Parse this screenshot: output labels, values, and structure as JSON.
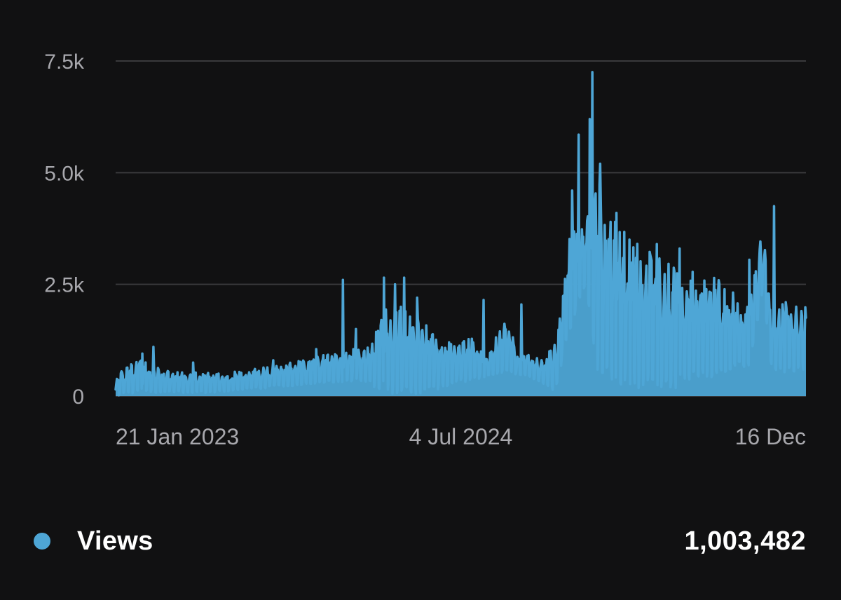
{
  "colors": {
    "background": "#111112",
    "series": "#4ea6d6",
    "grid": "#3a3a3c",
    "tick_text": "#a8a8ad"
  },
  "summary": {
    "series_label": "Views",
    "total": "1,003,482"
  },
  "chart_data": {
    "type": "area",
    "title": "",
    "xlabel": "",
    "ylabel": "",
    "ylim": [
      0,
      7500
    ],
    "xlim": [
      "2023-01-21",
      "2025-12-16"
    ],
    "y_ticks": [
      {
        "value": 0,
        "label": "0"
      },
      {
        "value": 2500,
        "label": "2.5k"
      },
      {
        "value": 5000,
        "label": "5.0k"
      },
      {
        "value": 7500,
        "label": "7.5k"
      }
    ],
    "x_ticks": [
      {
        "date": "2023-01-21",
        "label": "21 Jan 2023"
      },
      {
        "date": "2024-07-04",
        "label": "4 Jul 2024"
      },
      {
        "date": "2025-12-16",
        "label": "16 Dec"
      }
    ],
    "grid": true,
    "series": [
      {
        "name": "Views",
        "color": "#4ea6d6",
        "low_envelope": [
          [
            "2023-01-21",
            0
          ],
          [
            "2023-03-01",
            50
          ],
          [
            "2023-06-01",
            50
          ],
          [
            "2023-09-01",
            150
          ],
          [
            "2024-01-01",
            300
          ],
          [
            "2024-02-01",
            300
          ],
          [
            "2024-03-20",
            0
          ],
          [
            "2024-05-15",
            0
          ],
          [
            "2024-06-15",
            200
          ],
          [
            "2024-08-01",
            350
          ],
          [
            "2024-09-10",
            500
          ],
          [
            "2024-10-20",
            400
          ],
          [
            "2024-11-25",
            50
          ],
          [
            "2024-12-15",
            1200
          ],
          [
            "2025-01-10",
            2400
          ],
          [
            "2025-02-01",
            300
          ],
          [
            "2025-04-01",
            100
          ],
          [
            "2025-06-01",
            100
          ],
          [
            "2025-08-01",
            400
          ],
          [
            "2025-09-20",
            600
          ],
          [
            "2025-10-10",
            2200
          ],
          [
            "2025-10-25",
            500
          ],
          [
            "2025-12-16",
            500
          ]
        ],
        "high_envelope": [
          [
            "2023-01-21",
            450
          ],
          [
            "2023-03-01",
            900
          ],
          [
            "2023-04-01",
            600
          ],
          [
            "2023-07-01",
            500
          ],
          [
            "2023-10-01",
            700
          ],
          [
            "2024-01-01",
            1000
          ],
          [
            "2024-02-10",
            1100
          ],
          [
            "2024-03-10",
            2000
          ],
          [
            "2024-04-15",
            2000
          ],
          [
            "2024-05-15",
            1600
          ],
          [
            "2024-06-15",
            1200
          ],
          [
            "2024-07-20",
            1300
          ],
          [
            "2024-08-15",
            900
          ],
          [
            "2024-09-10",
            1800
          ],
          [
            "2024-10-01",
            1000
          ],
          [
            "2024-11-10",
            800
          ],
          [
            "2024-12-01",
            1500
          ],
          [
            "2024-12-20",
            3800
          ],
          [
            "2025-01-10",
            4000
          ],
          [
            "2025-02-01",
            4800
          ],
          [
            "2025-03-01",
            3800
          ],
          [
            "2025-04-15",
            3300
          ],
          [
            "2025-06-01",
            2900
          ],
          [
            "2025-08-01",
            2700
          ],
          [
            "2025-09-20",
            2000
          ],
          [
            "2025-10-10",
            3800
          ],
          [
            "2025-10-25",
            2100
          ],
          [
            "2025-12-16",
            2000
          ]
        ],
        "peaks": [
          [
            "2023-03-03",
            950
          ],
          [
            "2023-03-20",
            1100
          ],
          [
            "2023-05-20",
            750
          ],
          [
            "2023-09-20",
            800
          ],
          [
            "2023-11-25",
            1050
          ],
          [
            "2024-01-05",
            2600
          ],
          [
            "2024-01-25",
            1500
          ],
          [
            "2024-03-08",
            2650
          ],
          [
            "2024-03-25",
            2500
          ],
          [
            "2024-04-08",
            2650
          ],
          [
            "2024-04-28",
            2200
          ],
          [
            "2024-08-08",
            2150
          ],
          [
            "2024-10-05",
            2050
          ],
          [
            "2024-12-22",
            4600
          ],
          [
            "2025-01-01",
            5850
          ],
          [
            "2025-01-18",
            6200
          ],
          [
            "2025-01-22",
            7250
          ],
          [
            "2025-02-03",
            5200
          ],
          [
            "2025-02-28",
            4100
          ],
          [
            "2025-03-20",
            3500
          ],
          [
            "2025-05-01",
            3400
          ],
          [
            "2025-06-05",
            3300
          ],
          [
            "2025-09-20",
            3050
          ],
          [
            "2025-10-28",
            4250
          ],
          [
            "2025-11-15",
            2100
          ]
        ]
      }
    ]
  }
}
